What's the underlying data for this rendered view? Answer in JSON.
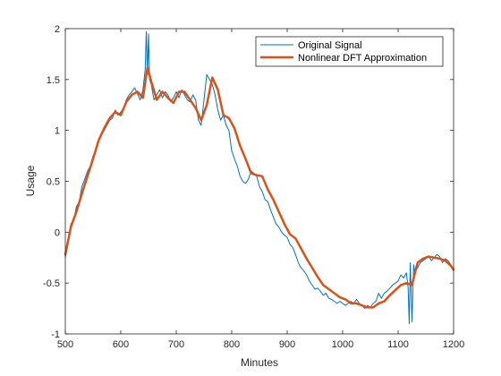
{
  "chart_data": {
    "type": "line",
    "title": "",
    "xlabel": "Minutes",
    "ylabel": "Usage",
    "xlim": [
      500,
      1200
    ],
    "ylim": [
      -1,
      2
    ],
    "xticks": [
      500,
      600,
      700,
      800,
      900,
      1000,
      1100,
      1200
    ],
    "xtick_labels": [
      "500",
      "600",
      "700",
      "800",
      "900",
      "1000",
      "1100",
      "1200"
    ],
    "yticks": [
      -1,
      -0.5,
      0,
      0.5,
      1,
      1.5,
      2
    ],
    "ytick_labels": [
      "-1",
      "-0.5",
      "0",
      "0.5",
      "1",
      "1.5",
      "2"
    ],
    "grid": false,
    "legend_position": "top-right",
    "series": [
      {
        "name": "Original Signal",
        "color": "#0072BD",
        "x": [
          500,
          505,
          510,
          515,
          520,
          525,
          530,
          535,
          540,
          545,
          550,
          555,
          560,
          565,
          570,
          575,
          580,
          585,
          590,
          595,
          600,
          605,
          610,
          615,
          620,
          625,
          630,
          635,
          640,
          644,
          646,
          648,
          650,
          652,
          655,
          660,
          665,
          670,
          675,
          680,
          685,
          690,
          695,
          700,
          705,
          710,
          715,
          720,
          725,
          730,
          735,
          740,
          745,
          750,
          755,
          760,
          765,
          770,
          775,
          780,
          785,
          790,
          795,
          800,
          805,
          810,
          815,
          820,
          825,
          830,
          835,
          840,
          845,
          850,
          855,
          860,
          865,
          870,
          875,
          880,
          885,
          890,
          895,
          900,
          905,
          910,
          915,
          920,
          925,
          930,
          935,
          940,
          945,
          950,
          955,
          960,
          965,
          970,
          975,
          980,
          985,
          990,
          995,
          1000,
          1005,
          1010,
          1015,
          1020,
          1025,
          1030,
          1035,
          1040,
          1045,
          1050,
          1055,
          1060,
          1065,
          1070,
          1075,
          1080,
          1085,
          1090,
          1095,
          1100,
          1105,
          1110,
          1115,
          1118,
          1120,
          1122,
          1125,
          1128,
          1130,
          1135,
          1140,
          1145,
          1150,
          1155,
          1160,
          1165,
          1170,
          1175,
          1180,
          1185,
          1190,
          1195,
          1200
        ],
        "y": [
          -0.25,
          -0.12,
          0.08,
          0.12,
          0.25,
          0.3,
          0.45,
          0.52,
          0.6,
          0.65,
          0.75,
          0.8,
          0.9,
          0.95,
          1.0,
          1.05,
          1.1,
          1.12,
          1.2,
          1.15,
          1.18,
          1.22,
          1.3,
          1.35,
          1.38,
          1.42,
          1.36,
          1.3,
          1.4,
          1.6,
          1.97,
          1.55,
          1.95,
          1.5,
          1.45,
          1.3,
          1.35,
          1.4,
          1.32,
          1.38,
          1.35,
          1.28,
          1.32,
          1.38,
          1.32,
          1.4,
          1.35,
          1.3,
          1.28,
          1.35,
          1.3,
          1.1,
          1.05,
          1.3,
          1.55,
          1.5,
          1.45,
          1.35,
          1.2,
          1.1,
          1.15,
          1.05,
          1.0,
          0.8,
          0.72,
          0.65,
          0.55,
          0.5,
          0.48,
          0.52,
          0.6,
          0.58,
          0.55,
          0.45,
          0.4,
          0.32,
          0.3,
          0.22,
          0.15,
          0.08,
          0.05,
          0.0,
          -0.03,
          -0.05,
          -0.12,
          -0.15,
          -0.22,
          -0.3,
          -0.35,
          -0.38,
          -0.42,
          -0.48,
          -0.52,
          -0.56,
          -0.55,
          -0.58,
          -0.62,
          -0.6,
          -0.65,
          -0.66,
          -0.68,
          -0.7,
          -0.68,
          -0.7,
          -0.72,
          -0.7,
          -0.68,
          -0.7,
          -0.66,
          -0.7,
          -0.72,
          -0.75,
          -0.72,
          -0.74,
          -0.7,
          -0.68,
          -0.6,
          -0.65,
          -0.6,
          -0.58,
          -0.55,
          -0.52,
          -0.5,
          -0.48,
          -0.42,
          -0.45,
          -0.4,
          -0.55,
          -0.9,
          -0.3,
          -0.88,
          -0.32,
          -0.4,
          -0.35,
          -0.3,
          -0.28,
          -0.26,
          -0.24,
          -0.28,
          -0.25,
          -0.22,
          -0.24,
          -0.3,
          -0.26,
          -0.28,
          -0.32,
          -0.38
        ]
      },
      {
        "name": "Nonlinear DFT Approximation",
        "color": "#D95319",
        "x": [
          500,
          510,
          520,
          530,
          540,
          550,
          560,
          570,
          580,
          590,
          600,
          610,
          620,
          630,
          640,
          648,
          655,
          665,
          675,
          685,
          695,
          705,
          715,
          725,
          735,
          745,
          755,
          765,
          775,
          785,
          795,
          805,
          815,
          825,
          835,
          845,
          855,
          865,
          875,
          885,
          895,
          905,
          915,
          925,
          935,
          945,
          955,
          965,
          975,
          985,
          995,
          1005,
          1015,
          1025,
          1035,
          1045,
          1055,
          1065,
          1075,
          1085,
          1095,
          1105,
          1115,
          1125,
          1135,
          1145,
          1155,
          1165,
          1175,
          1185,
          1195,
          1200
        ],
        "y": [
          -0.22,
          0.05,
          0.2,
          0.38,
          0.55,
          0.72,
          0.9,
          1.02,
          1.12,
          1.18,
          1.15,
          1.28,
          1.35,
          1.38,
          1.32,
          1.62,
          1.48,
          1.3,
          1.38,
          1.32,
          1.27,
          1.38,
          1.38,
          1.3,
          1.22,
          1.1,
          1.25,
          1.52,
          1.4,
          1.15,
          1.12,
          1.02,
          0.85,
          0.72,
          0.58,
          0.56,
          0.55,
          0.42,
          0.32,
          0.2,
          0.08,
          -0.02,
          -0.06,
          -0.16,
          -0.26,
          -0.35,
          -0.44,
          -0.52,
          -0.56,
          -0.6,
          -0.64,
          -0.66,
          -0.7,
          -0.7,
          -0.72,
          -0.74,
          -0.74,
          -0.7,
          -0.68,
          -0.62,
          -0.57,
          -0.52,
          -0.5,
          -0.52,
          -0.3,
          -0.26,
          -0.24,
          -0.25,
          -0.26,
          -0.28,
          -0.33,
          -0.37
        ]
      }
    ]
  }
}
